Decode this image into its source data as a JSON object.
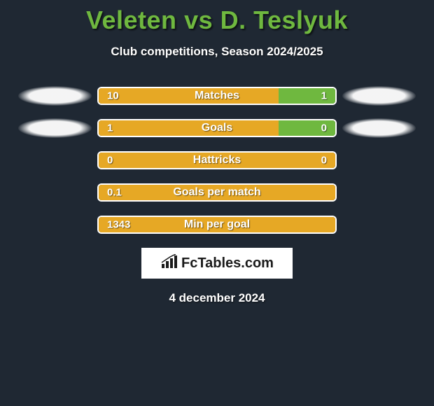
{
  "header": {
    "player1": "Veleten",
    "vs": "vs",
    "player2": "D. Teslyuk",
    "subtitle": "Club competitions, Season 2024/2025"
  },
  "rows": [
    {
      "label": "Matches",
      "left_value": "10",
      "right_value": "1",
      "left_width_pct": 76,
      "show_left_ellipse": true,
      "show_right_ellipse": true,
      "bar_left_color": "#e6a825",
      "bar_right_color": "#6fb83f"
    },
    {
      "label": "Goals",
      "left_value": "1",
      "right_value": "0",
      "left_width_pct": 76,
      "show_left_ellipse": true,
      "show_right_ellipse": true,
      "bar_left_color": "#e6a825",
      "bar_right_color": "#6fb83f"
    },
    {
      "label": "Hattricks",
      "left_value": "0",
      "right_value": "0",
      "left_width_pct": 100,
      "show_left_ellipse": false,
      "show_right_ellipse": false,
      "bar_left_color": "#e6a825",
      "bar_right_color": "#6fb83f"
    },
    {
      "label": "Goals per match",
      "left_value": "0.1",
      "right_value": "",
      "left_width_pct": 100,
      "show_left_ellipse": false,
      "show_right_ellipse": false,
      "bar_left_color": "#e6a825",
      "bar_right_color": "#6fb83f"
    },
    {
      "label": "Min per goal",
      "left_value": "1343",
      "right_value": "",
      "left_width_pct": 100,
      "show_left_ellipse": false,
      "show_right_ellipse": false,
      "bar_left_color": "#e6a825",
      "bar_right_color": "#6fb83f"
    }
  ],
  "logo": {
    "text": "FcTables.com"
  },
  "date": "4 december 2024",
  "colors": {
    "background": "#1f2833",
    "title_color": "#6fb83f",
    "text_color": "#ffffff",
    "border_color": "#ffffff"
  }
}
